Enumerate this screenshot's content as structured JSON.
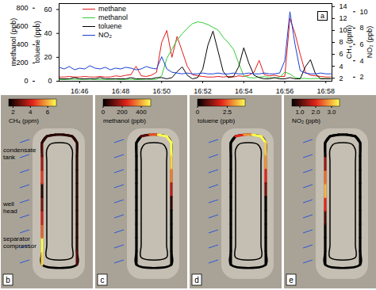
{
  "chart_data": {
    "type": "line",
    "panel": "a",
    "x": [
      1005,
      1005.25,
      1005.5,
      1005.75,
      1006,
      1006.25,
      1006.5,
      1006.75,
      1007,
      1007.25,
      1007.5,
      1007.75,
      1008,
      1008.25,
      1008.5,
      1008.75,
      1009,
      1009.25,
      1009.5,
      1009.75,
      1010,
      1010.25,
      1010.5,
      1010.75,
      1011,
      1011.25,
      1011.5,
      1011.75,
      1012,
      1012.25,
      1012.5,
      1012.75,
      1013,
      1013.25,
      1013.5,
      1013.75,
      1014,
      1014.25,
      1014.5,
      1014.75,
      1015,
      1015.25,
      1015.5,
      1015.75,
      1016,
      1016.25,
      1016.5,
      1016.75,
      1017,
      1017.25,
      1017.5,
      1017.75,
      1018,
      1018.25
    ],
    "xlim": [
      1005,
      1018.3
    ],
    "xticks": [
      {
        "value": 1006,
        "label": "16:46"
      },
      {
        "value": 1008,
        "label": "16:48"
      },
      {
        "value": 1010,
        "label": "16:50"
      },
      {
        "value": 1012,
        "label": "16:52"
      },
      {
        "value": 1014,
        "label": "16:54"
      },
      {
        "value": 1016,
        "label": "16:56"
      },
      {
        "value": 1018,
        "label": "16:58"
      }
    ],
    "series": [
      {
        "name": "methane",
        "color": "#e41a1c",
        "axis": "y2",
        "label": "CH₄ (ppm)",
        "ylim": [
          1.5,
          14.5
        ],
        "yticks": [
          2,
          4,
          6,
          8,
          10,
          12,
          14
        ],
        "values": [
          2.2,
          2.2,
          2.3,
          2.2,
          2.2,
          2.3,
          2.2,
          2.2,
          2.3,
          2.2,
          2.2,
          2.4,
          2.3,
          2.5,
          2.6,
          4.0,
          2.4,
          2.3,
          2.5,
          3.0,
          8.0,
          10.0,
          5.5,
          9.0,
          6.5,
          4.0,
          2.6,
          2.4,
          2.3,
          2.2,
          2.2,
          2.3,
          2.2,
          2.3,
          2.2,
          2.4,
          2.3,
          2.5,
          3.0,
          5.0,
          2.6,
          2.4,
          2.5,
          2.3,
          2.3,
          12.0,
          9.5,
          6.0,
          3.0,
          2.5,
          2.4,
          2.3,
          2.2,
          2.2
        ]
      },
      {
        "name": "methanol",
        "color": "#33cc33",
        "axis": "y",
        "label": "methanol (ppb)",
        "ylim": [
          0,
          850
        ],
        "yticks": [
          0,
          200,
          400,
          600,
          800
        ],
        "values": [
          20,
          18,
          22,
          19,
          21,
          20,
          23,
          19,
          18,
          21,
          20,
          22,
          19,
          20,
          21,
          18,
          20,
          22,
          21,
          20,
          60,
          250,
          350,
          450,
          520,
          580,
          630,
          650,
          640,
          620,
          590,
          560,
          480,
          420,
          350,
          200,
          60,
          40,
          35,
          45,
          50,
          40,
          35,
          40,
          100,
          80,
          40,
          30,
          30,
          28,
          30,
          29,
          30,
          28
        ]
      },
      {
        "name": "toluene",
        "color": "#000000",
        "axis": "y",
        "label": "toluene (ppb)",
        "ylim": [
          0,
          65
        ],
        "yticks": [
          0,
          20,
          40,
          60
        ],
        "values": [
          2,
          2,
          2,
          3,
          2,
          2,
          2,
          2,
          3,
          2,
          2,
          2,
          2,
          2,
          3,
          2,
          2,
          2,
          2,
          3,
          3,
          2,
          3,
          8,
          12,
          5,
          2,
          3,
          10,
          30,
          42,
          25,
          8,
          3,
          4,
          12,
          28,
          15,
          5,
          3,
          2,
          2,
          3,
          2,
          2,
          3,
          2,
          2,
          12,
          18,
          6,
          2,
          2,
          2
        ]
      },
      {
        "name": "NO₂",
        "color": "#1a3fd4",
        "axis": "y2",
        "label": "NO₂ (ppb)",
        "ylim": [
          1.5,
          11
        ],
        "yticks": [
          2,
          4,
          6,
          8,
          10
        ],
        "values": [
          3.2,
          3.0,
          3.3,
          2.9,
          3.1,
          3.0,
          3.4,
          3.1,
          3.0,
          3.2,
          2.9,
          3.1,
          3.0,
          3.2,
          3.1,
          2.9,
          3.0,
          3.3,
          3.1,
          3.0,
          4.5,
          3.0,
          2.6,
          2.5,
          2.4,
          2.5,
          2.4,
          2.4,
          2.5,
          2.4,
          2.4,
          2.5,
          2.4,
          2.4,
          2.5,
          2.4,
          2.4,
          2.5,
          2.4,
          2.4,
          2.5,
          2.4,
          2.4,
          2.5,
          4.0,
          10.0,
          6.0,
          2.8,
          2.5,
          2.4,
          2.4,
          2.5,
          2.4,
          2.4
        ]
      }
    ]
  },
  "maps": [
    {
      "panel": "b",
      "label": "CH₄ (ppm)",
      "colorbar_range": [
        1.5,
        7
      ],
      "colorbar_ticks": [
        2,
        4,
        6
      ],
      "annotations": [
        "condensate tank",
        "well head",
        "separator compressor"
      ],
      "track_values": [
        6.5,
        7,
        5,
        4,
        3,
        2,
        4.5,
        3.5,
        2.5,
        2,
        2,
        2,
        2,
        2,
        2,
        2,
        2,
        2,
        2,
        2,
        2,
        2,
        2.5,
        5
      ]
    },
    {
      "panel": "c",
      "label": "methanol (ppb)",
      "colorbar_range": [
        0,
        500
      ],
      "colorbar_ticks": [
        0,
        200,
        400
      ],
      "annotations": [],
      "track_values": [
        0,
        0,
        0,
        0,
        0,
        0,
        0,
        0,
        0,
        0,
        100,
        300,
        500,
        500,
        500,
        450,
        350,
        200,
        50,
        0,
        0,
        0,
        0,
        0
      ]
    },
    {
      "panel": "d",
      "label": "toluene (ppb)",
      "colorbar_range": [
        0,
        4
      ],
      "colorbar_ticks": [
        0,
        2.5
      ],
      "annotations": [],
      "track_values": [
        0,
        0,
        0,
        0,
        0,
        0,
        0,
        0,
        0,
        0,
        2,
        3,
        4,
        4,
        3.5,
        3,
        2,
        1,
        0,
        0,
        0,
        0,
        0,
        0
      ]
    },
    {
      "panel": "e",
      "label": "NO₂ (ppb)",
      "colorbar_range": [
        0.5,
        3.5
      ],
      "colorbar_ticks": [
        {
          "value": 1,
          "label": "1.0"
        },
        {
          "value": 2,
          "label": "2.0"
        },
        {
          "value": 3,
          "label": "3.0"
        }
      ],
      "annotations": [],
      "track_values": [
        0.5,
        0.5,
        0.5,
        1,
        2,
        3,
        2.5,
        1.5,
        0.5,
        0.5,
        0.5,
        0.5,
        0.5,
        0.5,
        0.5,
        0.5,
        0.5,
        0.5,
        0.5,
        0.5,
        0.5,
        0.5,
        0.5,
        0.5
      ]
    }
  ]
}
